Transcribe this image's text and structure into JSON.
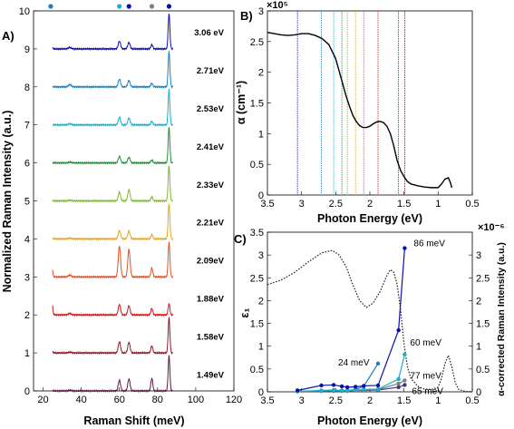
{
  "chart_data": [
    {
      "panel": "A)",
      "type": "line",
      "xlabel": "Raman Shift (meV)",
      "ylabel": "Normalized Raman Intensity (a.u.)",
      "xlim": [
        15,
        120
      ],
      "ylim": [
        0,
        10
      ],
      "xticks": [
        "20",
        "40",
        "60",
        "80",
        "100",
        "120"
      ],
      "yticks": [
        "0",
        "1",
        "2",
        "3",
        "4",
        "5",
        "6",
        "7",
        "8",
        "9",
        "10"
      ],
      "energies": [
        "3.06 eV",
        "2.71eV",
        "2.53eV",
        "2.41eV",
        "2.33eV",
        "2.21eV",
        "2.09eV",
        "1.88eV",
        "1.58eV",
        "1.49eV"
      ],
      "series_colors": [
        "#0b0fa8",
        "#1a7fbf",
        "#17b0c8",
        "#1e8f3a",
        "#7dbb2e",
        "#e5a41a",
        "#e0522a",
        "#d21515",
        "#8a1c2a",
        "#5a1a40"
      ],
      "peaks": [
        {
          "x": 24,
          "w": 0.6
        },
        {
          "x": 34,
          "w": 0.8
        },
        {
          "x": 60,
          "w": 0.6
        },
        {
          "x": 65,
          "w": 0.6
        },
        {
          "x": 77,
          "w": 0.5
        },
        {
          "x": 86,
          "w": 0.45
        }
      ],
      "peak_heights": [
        [
          0.08,
          0.04,
          0.22,
          0.18,
          0.12,
          1.0
        ],
        [
          0.04,
          0.06,
          0.22,
          0.18,
          0.1,
          1.0
        ],
        [
          0.06,
          0.03,
          0.22,
          0.2,
          0.1,
          1.0
        ],
        [
          0.06,
          0.02,
          0.18,
          0.16,
          0.08,
          1.0
        ],
        [
          0.05,
          0.02,
          0.25,
          0.32,
          0.12,
          1.0
        ],
        [
          0.08,
          0.02,
          0.24,
          0.22,
          0.12,
          1.0
        ],
        [
          0.8,
          0.05,
          0.88,
          0.78,
          0.25,
          1.0
        ],
        [
          1.0,
          0.04,
          0.3,
          0.26,
          0.18,
          0.32
        ],
        [
          0.2,
          0.02,
          0.32,
          0.3,
          0.2,
          1.0
        ],
        [
          0.08,
          0.02,
          0.3,
          0.34,
          0.36,
          1.0
        ]
      ],
      "top_markers": [
        {
          "x": 24,
          "color": "#1a7fbf"
        },
        {
          "x": 60,
          "color": "#17b0c8"
        },
        {
          "x": 65,
          "color": "#0b0fa8"
        },
        {
          "x": 77,
          "color": "#7f7f7f"
        },
        {
          "x": 86,
          "color": "#0b0fa8"
        }
      ]
    },
    {
      "panel": "B)",
      "type": "line",
      "xlabel": "Photon Energy (eV)",
      "ylabel": "α (cm⁻¹)",
      "scale_label": "×10⁵",
      "xlim": [
        3.5,
        0.5
      ],
      "ylim": [
        0,
        3
      ],
      "xticks": [
        "3.5",
        "3",
        "2.5",
        "2",
        "1.5",
        "1",
        "0.5"
      ],
      "yticks": [
        "0",
        "0.5",
        "1",
        "1.5",
        "2",
        "2.5",
        "3"
      ],
      "absorption": {
        "x": [
          3.5,
          3.4,
          3.3,
          3.2,
          3.1,
          3.0,
          2.9,
          2.8,
          2.7,
          2.6,
          2.5,
          2.45,
          2.4,
          2.35,
          2.3,
          2.25,
          2.2,
          2.15,
          2.1,
          2.05,
          2.0,
          1.95,
          1.9,
          1.85,
          1.8,
          1.75,
          1.7,
          1.65,
          1.6,
          1.55,
          1.5,
          1.45,
          1.4,
          1.3,
          1.2,
          1.1,
          1.0,
          0.95,
          0.9,
          0.85,
          0.82,
          0.8
        ],
        "y": [
          2.65,
          2.63,
          2.61,
          2.6,
          2.61,
          2.63,
          2.63,
          2.6,
          2.55,
          2.45,
          2.22,
          2.02,
          1.82,
          1.62,
          1.45,
          1.3,
          1.2,
          1.13,
          1.1,
          1.1,
          1.12,
          1.16,
          1.19,
          1.2,
          1.18,
          1.12,
          1.0,
          0.8,
          0.56,
          0.4,
          0.3,
          0.22,
          0.18,
          0.15,
          0.13,
          0.12,
          0.12,
          0.18,
          0.26,
          0.28,
          0.2,
          0.12
        ]
      },
      "excitation_lines": [
        {
          "x": 3.06,
          "color": "#0b0fa8"
        },
        {
          "x": 2.71,
          "color": "#1a7fbf"
        },
        {
          "x": 2.53,
          "color": "#17b0c8"
        },
        {
          "x": 2.41,
          "color": "#1e8f3a"
        },
        {
          "x": 2.33,
          "color": "#7dbb2e"
        },
        {
          "x": 2.21,
          "color": "#e5a41a"
        },
        {
          "x": 2.09,
          "color": "#e0522a"
        },
        {
          "x": 1.88,
          "color": "#d21515"
        },
        {
          "x": 1.58,
          "color": "#8a1c2a"
        },
        {
          "x": 1.49,
          "color": "#5a1a40"
        }
      ]
    },
    {
      "panel": "C)",
      "type": "line",
      "xlabel": "Photon Energy (eV)",
      "ylabel": "ε₁",
      "ylabel_right": "α-corrected Raman Intensity (a.u.)",
      "scale_label": "×10⁻⁶",
      "xlim": [
        3.5,
        0.5
      ],
      "ylim": [
        0,
        3.5
      ],
      "ylim_right": [
        0,
        3.5
      ],
      "xticks": [
        "3.5",
        "3",
        "2.5",
        "2",
        "1.5",
        "1",
        "0.5"
      ],
      "yticks": [
        "0",
        "0.5",
        "1",
        "1.5",
        "2",
        "2.5",
        "3",
        "3.5"
      ],
      "yticks_right": [
        "0",
        "0.5",
        "1",
        "1.5",
        "2",
        "2.5",
        "3"
      ],
      "epsilon": {
        "x": [
          3.5,
          3.3,
          3.1,
          2.9,
          2.7,
          2.55,
          2.45,
          2.35,
          2.25,
          2.15,
          2.05,
          1.95,
          1.85,
          1.75,
          1.7,
          1.65,
          1.6,
          1.55,
          1.5,
          1.45,
          1.4,
          1.3,
          1.2,
          1.1,
          1.0,
          0.95,
          0.9,
          0.85,
          0.8,
          0.75,
          0.7,
          0.6,
          0.5
        ],
        "y": [
          2.35,
          2.45,
          2.62,
          2.85,
          3.05,
          3.1,
          3.0,
          2.75,
          2.35,
          2.0,
          1.85,
          1.95,
          2.2,
          2.55,
          2.68,
          2.62,
          2.35,
          1.8,
          1.05,
          0.55,
          0.3,
          0.12,
          0.06,
          0.05,
          0.1,
          0.3,
          0.62,
          0.8,
          0.55,
          0.2,
          0.05,
          0.01,
          0.0
        ]
      },
      "series": [
        {
          "name": "86 meV",
          "color": "#0b0fa8",
          "x": [
            3.06,
            2.71,
            2.53,
            2.41,
            2.33,
            2.21,
            2.09,
            1.88,
            1.58,
            1.49
          ],
          "y": [
            0.03,
            0.14,
            0.15,
            0.12,
            0.1,
            0.11,
            0.13,
            0.14,
            1.35,
            3.15
          ]
        },
        {
          "name": "60 meV",
          "color": "#17b0c8",
          "x": [
            3.06,
            2.71,
            2.53,
            2.41,
            2.33,
            2.21,
            2.09,
            1.88,
            1.58,
            1.49
          ],
          "y": [
            0.01,
            0.03,
            0.04,
            0.03,
            0.03,
            0.04,
            0.05,
            0.06,
            0.28,
            0.82
          ]
        },
        {
          "name": "24 meV",
          "color": "#1a7fbf",
          "x": [
            3.06,
            2.71,
            2.53,
            2.41,
            2.33,
            2.21,
            2.09,
            1.88
          ],
          "y": [
            0.01,
            0.02,
            0.03,
            0.03,
            0.03,
            0.05,
            0.12,
            0.62
          ]
        },
        {
          "name": "77 meV",
          "color": "#7f7f7f",
          "x": [
            3.06,
            2.71,
            2.53,
            2.41,
            2.33,
            2.21,
            2.09,
            1.88,
            1.58,
            1.49
          ],
          "y": [
            0.01,
            0.02,
            0.02,
            0.02,
            0.02,
            0.03,
            0.04,
            0.05,
            0.18,
            0.25
          ]
        },
        {
          "name": "65 meV",
          "color": "#3a3a8a",
          "x": [
            3.06,
            2.71,
            2.53,
            2.41,
            2.33,
            2.21,
            2.09,
            1.88,
            1.58,
            1.49
          ],
          "y": [
            0.01,
            0.02,
            0.02,
            0.02,
            0.02,
            0.03,
            0.03,
            0.04,
            0.1,
            0.15
          ]
        }
      ]
    }
  ]
}
